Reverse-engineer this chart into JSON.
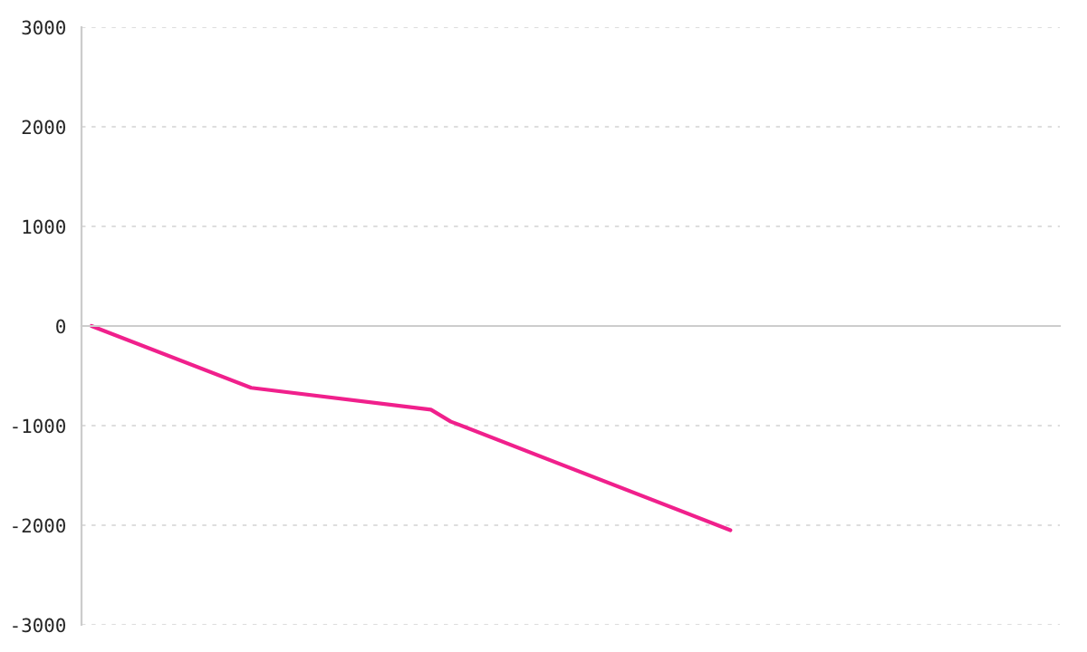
{
  "chart_data": {
    "type": "line",
    "categories": [
      null,
      null,
      null,
      null,
      null,
      null,
      null,
      null,
      null,
      null,
      null,
      null,
      null,
      null,
      null,
      null,
      null,
      null,
      null,
      null,
      null,
      null,
      null,
      null,
      null,
      null,
      null,
      null,
      null,
      null,
      null,
      null,
      null,
      null,
      null,
      null,
      null,
      null,
      null,
      null,
      null,
      null,
      null,
      null,
      null,
      null,
      null,
      null,
      null
    ],
    "series": [
      {
        "color": "#f0208c",
        "values": [
          0,
          null,
          null,
          null,
          null,
          null,
          null,
          null,
          -620,
          null,
          null,
          null,
          null,
          null,
          null,
          null,
          null,
          -840,
          -960,
          null,
          null,
          null,
          null,
          null,
          null,
          null,
          null,
          null,
          null,
          null,
          null,
          null,
          -2050,
          null,
          null,
          null,
          null,
          null,
          null,
          null,
          null,
          null,
          null,
          null,
          null,
          null,
          null,
          null,
          null
        ]
      }
    ],
    "ylim": [
      -3000,
      3000
    ],
    "yticks": [
      -3000,
      -2000,
      -1000,
      0,
      1000,
      2000,
      3000
    ],
    "tick_labels": "y",
    "grid": "y",
    "marker": "none",
    "line_style": "solid"
  }
}
